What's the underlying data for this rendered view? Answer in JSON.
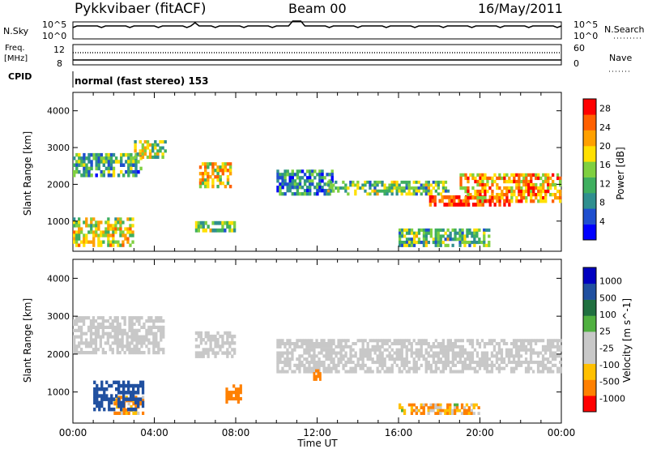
{
  "header": {
    "station": "Pykkvibaer (fitACF)",
    "beam": "Beam 00",
    "date": "16/May/2011"
  },
  "side_labels": {
    "nsky": "N.Sky",
    "freq_line1": "Freq.",
    "freq_line2": "[MHz]",
    "cpid": "CPID",
    "nsearch": "N.Search",
    "nave": "Nave"
  },
  "cpid_text": "normal (fast stereo) 153",
  "noise_axis": {
    "left_ticks": [
      "10^5",
      "10^0"
    ],
    "right_ticks": [
      "10^5",
      "10^0"
    ]
  },
  "freq_axis": {
    "left_ticks": [
      "12",
      "8"
    ],
    "right_ticks": [
      "60",
      "0"
    ]
  },
  "colors": {
    "power_scale": [
      "#0000ff",
      "#1f4fcf",
      "#2f8f8f",
      "#3faf5f",
      "#7fd040",
      "#ffe000",
      "#ffa000",
      "#ff6000",
      "#ff0000"
    ],
    "velocity_scale": [
      "#0000c0",
      "#2050a0",
      "#207040",
      "#50b040",
      "#c8c8c8",
      "#c8c8c8",
      "#ffc000",
      "#ff8000",
      "#ff0000"
    ]
  },
  "chart_data": [
    {
      "type": "heatmap",
      "name": "power",
      "ylabel": "Slant Range [km]",
      "ylim": [
        180,
        4500
      ],
      "yticks": [
        1000,
        2000,
        3000,
        4000
      ],
      "xlim_hours": [
        0,
        24
      ],
      "colorbar": {
        "label": "Power [dB]",
        "ticks": [
          "4",
          "8",
          "12",
          "16",
          "20",
          "24",
          "28"
        ],
        "range": [
          0,
          30
        ]
      },
      "echo_bands": [
        {
          "t_start": 0.0,
          "t_end": 3.4,
          "range_min": 2200,
          "range_max": 2850,
          "power": 12
        },
        {
          "t_start": 0.0,
          "t_end": 3.0,
          "range_min": 300,
          "range_max": 1100,
          "power": 18
        },
        {
          "t_start": 3.0,
          "t_end": 4.6,
          "range_min": 2700,
          "range_max": 3200,
          "power": 16
        },
        {
          "t_start": 6.2,
          "t_end": 7.8,
          "range_min": 1900,
          "range_max": 2600,
          "power": 20
        },
        {
          "t_start": 6.0,
          "t_end": 8.0,
          "range_min": 700,
          "range_max": 1000,
          "power": 14
        },
        {
          "t_start": 10.0,
          "t_end": 12.8,
          "range_min": 1700,
          "range_max": 2400,
          "power": 10
        },
        {
          "t_start": 12.5,
          "t_end": 18.5,
          "range_min": 1700,
          "range_max": 2100,
          "power": 14
        },
        {
          "t_start": 17.5,
          "t_end": 21.5,
          "range_min": 1400,
          "range_max": 1700,
          "power": 26
        },
        {
          "t_start": 19.0,
          "t_end": 24.0,
          "range_min": 1500,
          "range_max": 2300,
          "power": 22
        },
        {
          "t_start": 16.0,
          "t_end": 20.5,
          "range_min": 300,
          "range_max": 800,
          "power": 14
        }
      ]
    },
    {
      "type": "heatmap",
      "name": "velocity",
      "xlabel": "Time UT",
      "ylabel": "Slant Range [km]",
      "ylim": [
        180,
        4500
      ],
      "yticks": [
        1000,
        2000,
        3000,
        4000
      ],
      "xlim_hours": [
        0,
        24
      ],
      "xticks": [
        "00:00",
        "04:00",
        "08:00",
        "12:00",
        "16:00",
        "20:00",
        "00:00"
      ],
      "colorbar": {
        "label": "Velocity [m s^-1]",
        "ticks": [
          "1000",
          "500",
          "100",
          "25",
          "-25",
          "-100",
          "-500",
          "-1000"
        ]
      },
      "echo_bands": [
        {
          "t_start": 0.0,
          "t_end": 4.5,
          "range_min": 2000,
          "range_max": 3000,
          "velocity": 0
        },
        {
          "t_start": 6.0,
          "t_end": 8.0,
          "range_min": 1900,
          "range_max": 2600,
          "velocity": 0
        },
        {
          "t_start": 10.0,
          "t_end": 24.0,
          "range_min": 1500,
          "range_max": 2400,
          "velocity": 0
        },
        {
          "t_start": 2.0,
          "t_end": 3.5,
          "range_min": 400,
          "range_max": 900,
          "velocity": -150
        },
        {
          "t_start": 7.5,
          "t_end": 8.3,
          "range_min": 700,
          "range_max": 1200,
          "velocity": -300
        },
        {
          "t_start": 11.8,
          "t_end": 12.2,
          "range_min": 1300,
          "range_max": 1600,
          "velocity": -300
        },
        {
          "t_start": 16.0,
          "t_end": 20.0,
          "range_min": 400,
          "range_max": 700,
          "velocity": -100
        },
        {
          "t_start": 1.0,
          "t_end": 3.5,
          "range_min": 500,
          "range_max": 1300,
          "velocity": 300
        }
      ]
    }
  ]
}
